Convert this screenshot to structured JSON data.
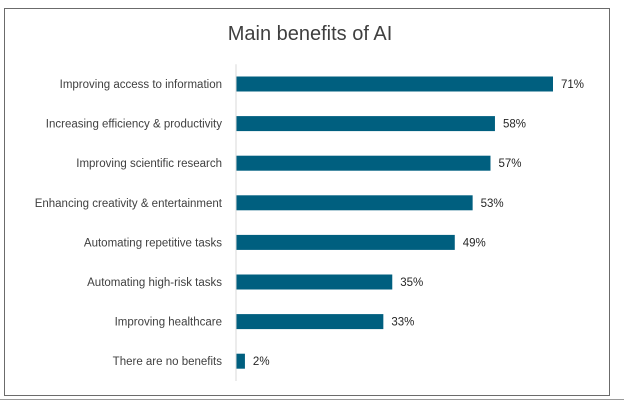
{
  "chart_data": {
    "type": "bar",
    "orientation": "horizontal",
    "title": "Main benefits of AI",
    "xlabel": "",
    "ylabel": "",
    "categories": [
      "Improving access to information",
      "Increasing efficiency & productivity",
      "Improving scientific research",
      "Enhancing creativity & entertainment",
      "Automating repetitive tasks",
      "Automating high-risk tasks",
      "Improving healthcare",
      "There are no benefits"
    ],
    "values": [
      71,
      58,
      57,
      53,
      49,
      35,
      33,
      2
    ],
    "value_labels": [
      "71%",
      "58%",
      "57%",
      "53%",
      "49%",
      "35%",
      "33%",
      "2%"
    ],
    "xlim": [
      0,
      71
    ],
    "grid": false,
    "legend": "none",
    "bar_color": "#005f7f"
  }
}
